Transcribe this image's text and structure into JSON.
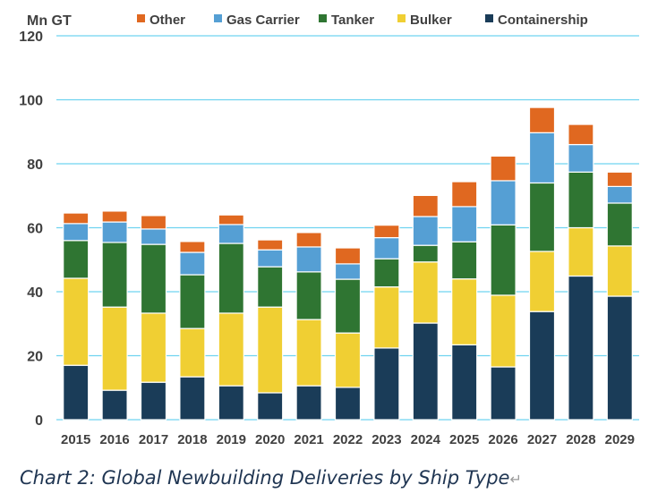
{
  "chart_data": {
    "type": "bar",
    "stacked": true,
    "ylabel": "Mn GT",
    "ylim": [
      0,
      120
    ],
    "yticks": [
      0,
      20,
      40,
      60,
      80,
      100,
      120
    ],
    "grid": true,
    "legend_placement": "top",
    "categories": [
      "2015",
      "2016",
      "2017",
      "2018",
      "2019",
      "2020",
      "2021",
      "2022",
      "2023",
      "2024",
      "2025",
      "2026",
      "2027",
      "2028",
      "2029"
    ],
    "series": [
      {
        "name": "Containership",
        "color": "#1a3c58",
        "values": [
          17.0,
          9.2,
          11.7,
          13.4,
          10.6,
          8.4,
          10.6,
          10.1,
          22.4,
          30.2,
          23.4,
          16.5,
          33.8,
          44.9,
          38.6
        ]
      },
      {
        "name": "Bulker",
        "color": "#f0cf33",
        "values": [
          27.2,
          26.0,
          21.6,
          15.1,
          22.7,
          26.8,
          20.7,
          17.0,
          19.1,
          19.1,
          20.6,
          22.4,
          18.8,
          15.1,
          15.7
        ]
      },
      {
        "name": "Tanker",
        "color": "#2f7532",
        "values": [
          11.8,
          20.2,
          21.5,
          16.8,
          21.8,
          12.6,
          14.9,
          16.8,
          8.8,
          5.2,
          11.6,
          22.0,
          21.4,
          17.4,
          13.4
        ]
      },
      {
        "name": "Gas Carrier",
        "color": "#559fd4",
        "values": [
          5.3,
          6.4,
          4.8,
          7.0,
          5.9,
          5.3,
          7.8,
          4.8,
          6.6,
          9.0,
          11.0,
          13.8,
          15.7,
          8.6,
          5.2
        ]
      },
      {
        "name": "Other",
        "color": "#e06820",
        "values": [
          3.3,
          3.4,
          4.2,
          3.4,
          3.0,
          3.1,
          4.5,
          5.0,
          3.9,
          6.6,
          7.8,
          7.7,
          7.9,
          6.3,
          4.5
        ]
      }
    ],
    "legend_order": [
      "Other",
      "Gas Carrier",
      "Tanker",
      "Bulker",
      "Containership"
    ],
    "grid_color": "#6fd3f0"
  },
  "caption": "Chart 2: Global Newbuilding Deliveries by Ship Type",
  "caption_mark": "↵"
}
